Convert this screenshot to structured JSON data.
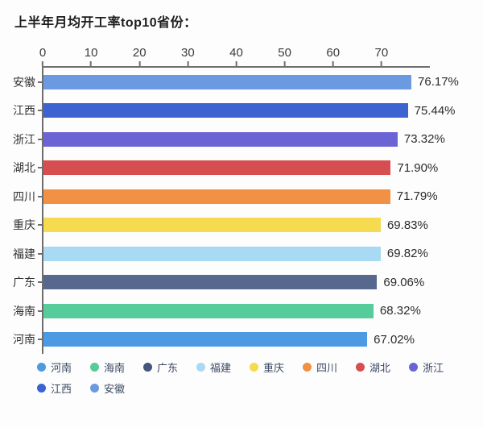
{
  "title": "上半年月均开工率top10省份：",
  "chart_data": {
    "type": "bar",
    "orientation": "horizontal",
    "title": "上半年月均开工率top10省份：",
    "xlabel": "",
    "ylabel": "",
    "categories": [
      "安徽",
      "江西",
      "浙江",
      "湖北",
      "四川",
      "重庆",
      "福建",
      "广东",
      "海南",
      "河南"
    ],
    "values": [
      76.17,
      75.44,
      73.32,
      71.9,
      71.79,
      69.83,
      69.82,
      69.06,
      68.32,
      67.02
    ],
    "value_labels": [
      "76.17%",
      "75.44%",
      "73.32%",
      "71.90%",
      "71.79%",
      "69.83%",
      "69.82%",
      "69.06%",
      "68.32%",
      "67.02%"
    ],
    "bar_colors": [
      "#6b9ae1",
      "#3d63d1",
      "#6c64d5",
      "#d74e50",
      "#f29043",
      "#f6da4f",
      "#a8daf3",
      "#56688e",
      "#55cc99",
      "#4c9ae3"
    ],
    "x_axis": {
      "position": "top",
      "ticks": [
        0,
        10,
        20,
        30,
        40,
        50,
        60,
        70
      ],
      "min": 0,
      "max": 80
    },
    "grid": false,
    "legend_position": "bottom",
    "legend": [
      {
        "label": "河南",
        "color": "#4c9ae3"
      },
      {
        "label": "海南",
        "color": "#55cc99"
      },
      {
        "label": "广东",
        "color": "#44567c"
      },
      {
        "label": "福建",
        "color": "#a8daf3"
      },
      {
        "label": "重庆",
        "color": "#f6da4f"
      },
      {
        "label": "四川",
        "color": "#f29043"
      },
      {
        "label": "湖北",
        "color": "#d74e50"
      },
      {
        "label": "浙江",
        "color": "#6c64d5"
      },
      {
        "label": "江西",
        "color": "#3d63d1"
      },
      {
        "label": "安徽",
        "color": "#6b9ae1"
      }
    ]
  }
}
